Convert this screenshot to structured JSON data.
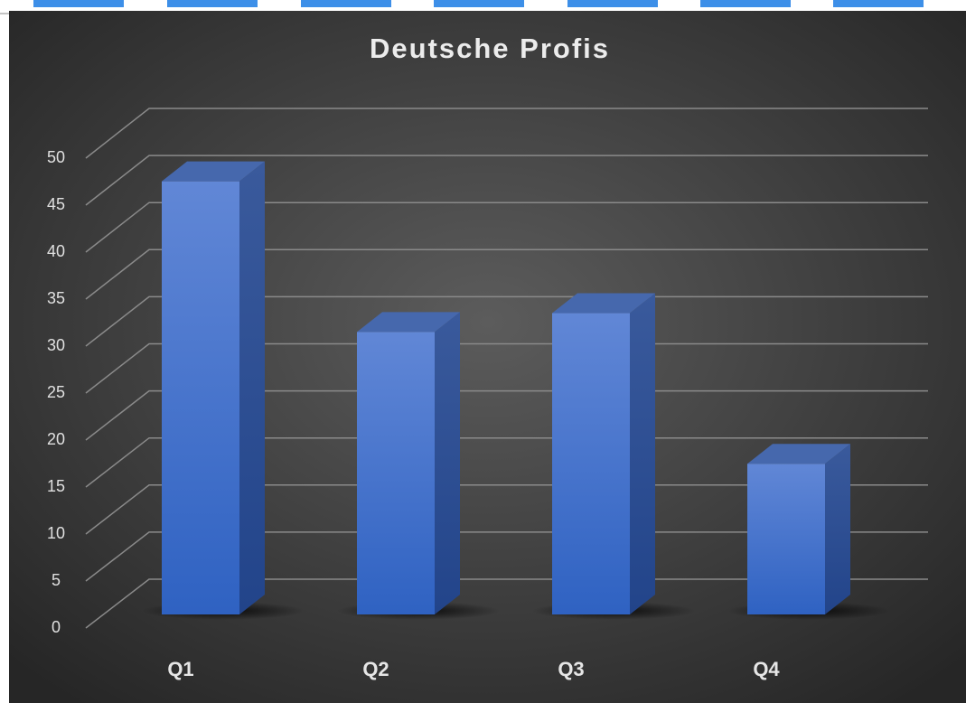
{
  "chart_data": {
    "type": "bar3d",
    "title": "Deutsche Profis",
    "categories": [
      "Q1",
      "Q2",
      "Q3",
      "Q4"
    ],
    "values": [
      46,
      30,
      32,
      16
    ],
    "color": "#4a78d6",
    "ylim": [
      0,
      50
    ],
    "yticks": [
      0,
      5,
      10,
      15,
      20,
      25,
      30,
      35,
      40,
      45,
      50
    ],
    "grid": true
  }
}
